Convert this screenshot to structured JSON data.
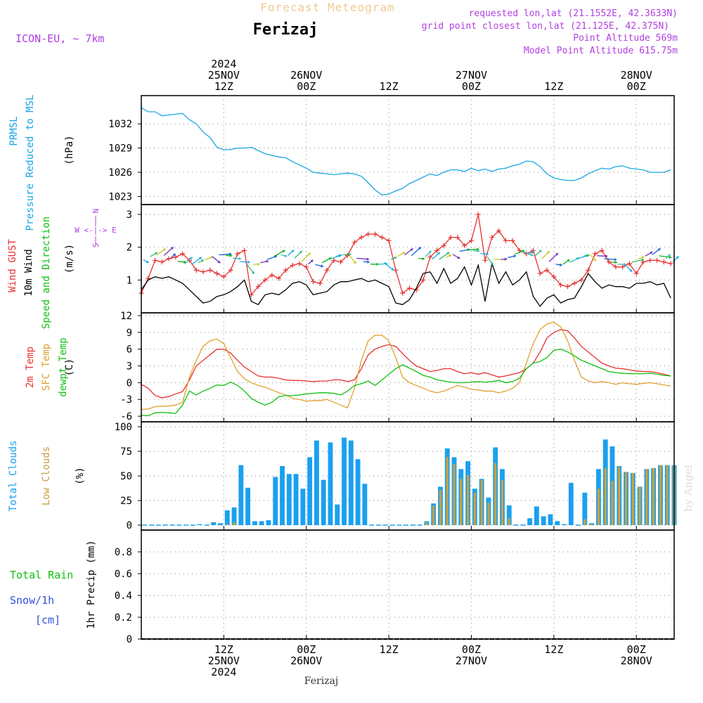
{
  "header": {
    "app_title": "Forecast Meteogram",
    "location": "Ferizaj",
    "model": "ICON-EU, ~ 7km",
    "requested": "requested lon,lat (21.1552E, 42.3633N)",
    "grid_point": "grid point closest lon,lat (21.125E, 42.375N)",
    "point_alt": "Point Altitude 569m",
    "model_alt": "Model Point Altitude 615.75m",
    "watermark": "by Angel",
    "footer": "Ferizaj"
  },
  "colors": {
    "pressure": "#1aa6e6",
    "gust": "#e83030",
    "wind": "#000000",
    "temp": "#e83030",
    "sfc": "#e0a030",
    "dewpt": "#10c010",
    "total_clouds": "#1aa0f0",
    "low_clouds": "#c8a040",
    "purple": "#b040e0",
    "rain": "#10c010",
    "snow": "#3050e0"
  },
  "time_axis": {
    "top_labels": [
      {
        "t": 12,
        "lines": [
          "2024",
          "25NOV",
          "12Z"
        ]
      },
      {
        "t": 24,
        "lines": [
          "26NOV",
          "00Z"
        ]
      },
      {
        "t": 36,
        "lines": [
          "12Z"
        ]
      },
      {
        "t": 48,
        "lines": [
          "27NOV",
          "00Z"
        ]
      },
      {
        "t": 60,
        "lines": [
          "12Z"
        ]
      },
      {
        "t": 72,
        "lines": [
          "28NOV",
          "00Z"
        ]
      }
    ],
    "bottom_labels": [
      {
        "t": 12,
        "lines": [
          "12Z",
          "25NOV",
          "2024"
        ]
      },
      {
        "t": 24,
        "lines": [
          "00Z",
          "26NOV"
        ]
      },
      {
        "t": 36,
        "lines": [
          "12Z"
        ]
      },
      {
        "t": 48,
        "lines": [
          "00Z",
          "27NOV"
        ]
      },
      {
        "t": 60,
        "lines": [
          "12Z"
        ]
      },
      {
        "t": 72,
        "lines": [
          "00Z",
          "28NOV"
        ]
      }
    ]
  },
  "chart_data": [
    {
      "type": "line",
      "name": "pressure",
      "ylabels": [
        "PRMSL",
        "Pressure Reduced to MSL"
      ],
      "unit": "(hPa)",
      "ylim": [
        1022,
        1035.5
      ],
      "yticks": [
        1023,
        1026,
        1029,
        1032
      ],
      "x_start": 0,
      "x_step": 1,
      "series": [
        {
          "values": [
            1034.0,
            1033.5,
            1033.5,
            1033.0,
            1033.1,
            1033.2,
            1033.3,
            1032.5,
            1032.0,
            1031.0,
            1030.3,
            1029.1,
            1028.8,
            1028.8,
            1029.0,
            1029.0,
            1029.1,
            1028.7,
            1028.3,
            1028.1,
            1027.9,
            1027.8,
            1027.3,
            1026.9,
            1026.5,
            1026.0,
            1025.9,
            1025.8,
            1025.7,
            1025.8,
            1025.9,
            1025.8,
            1025.5,
            1024.7,
            1023.8,
            1023.2,
            1023.3,
            1023.7,
            1024.0,
            1024.6,
            1025.0,
            1025.4,
            1025.8,
            1025.6,
            1026.0,
            1026.3,
            1026.3,
            1026.1,
            1026.5,
            1026.2,
            1026.4,
            1026.1,
            1026.4,
            1026.5,
            1026.8,
            1027.0,
            1027.4,
            1027.3,
            1026.7,
            1025.8,
            1025.3,
            1025.1,
            1025.0,
            1025.0,
            1025.3,
            1025.8,
            1026.2,
            1026.5,
            1026.4,
            1026.7,
            1026.8,
            1026.5,
            1026.4,
            1026.3,
            1026.0,
            1026.0,
            1026.0,
            1026.3
          ]
        }
      ]
    },
    {
      "type": "line",
      "name": "wind",
      "ylabels_colored": [
        {
          "text": "Wind GUST",
          "c": "gust"
        },
        {
          "text": "10m Wind",
          "c": "wind"
        },
        {
          "text": "Speed and Direction",
          "c": "dewpt"
        }
      ],
      "unit": "(m/s)",
      "compass": [
        "N",
        "W <-|-> E",
        "S"
      ],
      "ylim": [
        0,
        3.3
      ],
      "yticks": [
        1,
        2,
        3
      ],
      "x_start": 0,
      "x_step": 1,
      "series": [
        {
          "name": "Wind GUST",
          "values": [
            0.6,
            1.05,
            1.6,
            1.55,
            1.65,
            1.7,
            1.8,
            1.6,
            1.3,
            1.25,
            1.3,
            1.2,
            1.1,
            1.3,
            1.8,
            1.9,
            0.55,
            0.8,
            1.0,
            1.15,
            1.05,
            1.3,
            1.45,
            1.5,
            1.4,
            0.95,
            0.9,
            1.3,
            1.6,
            1.55,
            1.75,
            2.15,
            2.3,
            2.4,
            2.4,
            2.3,
            2.2,
            1.3,
            0.6,
            0.75,
            0.7,
            1.0,
            1.7,
            1.9,
            2.05,
            2.3,
            2.3,
            2.05,
            2.2,
            3.0,
            1.6,
            2.3,
            2.5,
            2.2,
            2.2,
            1.9,
            1.8,
            1.9,
            1.2,
            1.3,
            1.1,
            0.85,
            0.8,
            0.9,
            1.0,
            1.3,
            1.8,
            1.9,
            1.55,
            1.4,
            1.4,
            1.5,
            1.2,
            1.55,
            1.6,
            1.6,
            1.55,
            1.5
          ]
        },
        {
          "name": "10m Wind",
          "values": [
            0.7,
            1.0,
            1.1,
            1.05,
            1.1,
            1.0,
            0.9,
            0.7,
            0.5,
            0.3,
            0.35,
            0.5,
            0.55,
            0.65,
            0.8,
            1.0,
            0.35,
            0.25,
            0.55,
            0.6,
            0.55,
            0.7,
            0.9,
            0.95,
            0.85,
            0.55,
            0.6,
            0.65,
            0.85,
            0.95,
            0.95,
            1.0,
            1.05,
            0.95,
            1.0,
            0.9,
            0.8,
            0.3,
            0.25,
            0.4,
            0.75,
            1.2,
            1.25,
            0.9,
            1.35,
            0.9,
            1.05,
            1.4,
            0.85,
            1.45,
            0.35,
            1.5,
            0.9,
            1.25,
            0.85,
            1.0,
            1.25,
            0.5,
            0.2,
            0.45,
            0.55,
            0.3,
            0.4,
            0.45,
            0.8,
            1.2,
            0.95,
            0.75,
            0.85,
            0.8,
            0.8,
            0.75,
            0.9,
            0.9,
            0.95,
            0.85,
            0.9,
            0.45
          ]
        }
      ],
      "arrow_colors": [
        "#19a8e6",
        "#2fb870",
        "#c8c820",
        "#7030c0",
        "#1060e0",
        "#10b010",
        "#30c0c0"
      ]
    },
    {
      "type": "line",
      "name": "temperature",
      "ylabels_colored": [
        {
          "text": "2m Temp",
          "c": "temp"
        },
        {
          "text": "SFC Temp",
          "c": "sfc"
        },
        {
          "text": "dewpt Temp",
          "c": "dewpt"
        }
      ],
      "unit": "(C)",
      "ylim": [
        -7,
        12.5
      ],
      "yticks": [
        -6,
        -3,
        0,
        3,
        6,
        9,
        12
      ],
      "x_start": 0,
      "x_step": 1,
      "series": [
        {
          "name": "2m Temp",
          "values": [
            -0.3,
            -1.0,
            -2.3,
            -2.7,
            -2.5,
            -2.0,
            -1.6,
            0.5,
            3.0,
            4.0,
            5.0,
            6.0,
            6.0,
            5.3,
            4.0,
            2.8,
            2.0,
            1.2,
            1.0,
            1.0,
            0.8,
            0.5,
            0.4,
            0.4,
            0.3,
            0.2,
            0.3,
            0.3,
            0.5,
            0.5,
            0.2,
            0.5,
            2.5,
            5.0,
            6.0,
            6.5,
            6.8,
            6.5,
            5.2,
            4.0,
            3.0,
            2.5,
            2.0,
            2.2,
            2.5,
            2.5,
            2.0,
            1.6,
            1.8,
            1.5,
            1.8,
            1.4,
            1.0,
            1.2,
            1.5,
            1.8,
            2.5,
            3.5,
            5.5,
            8.0,
            9.0,
            9.5,
            9.3,
            8.0,
            6.5,
            5.5,
            4.5,
            3.5,
            3.0,
            2.6,
            2.5,
            2.3,
            2.1,
            2.0,
            2.0,
            1.8,
            1.5,
            1.2
          ]
        },
        {
          "name": "SFC Temp",
          "values": [
            -4.8,
            -4.7,
            -4.3,
            -4.2,
            -4.2,
            -4.0,
            -3.5,
            1.0,
            4.0,
            6.5,
            7.5,
            7.8,
            7.0,
            4.5,
            2.0,
            0.7,
            0.0,
            -0.5,
            -0.8,
            -1.3,
            -1.8,
            -2.2,
            -2.8,
            -3.0,
            -3.3,
            -3.2,
            -3.2,
            -3.0,
            -3.5,
            -4.0,
            -4.5,
            -1.0,
            4.0,
            7.5,
            8.5,
            8.5,
            7.5,
            4.5,
            1.0,
            0.0,
            -0.5,
            -1.0,
            -1.5,
            -1.8,
            -1.5,
            -1.0,
            -0.5,
            -0.8,
            -1.2,
            -1.3,
            -1.5,
            -1.5,
            -1.8,
            -1.5,
            -1.0,
            0.0,
            3.5,
            7.0,
            9.5,
            10.5,
            10.8,
            10.0,
            7.5,
            4.0,
            1.0,
            0.3,
            0.0,
            0.2,
            0.0,
            -0.3,
            0.0,
            -0.2,
            -0.3,
            -0.1,
            0.0,
            -0.2,
            -0.4,
            -0.6
          ]
        },
        {
          "name": "dewpt Temp",
          "values": [
            -5.8,
            -5.9,
            -5.4,
            -5.3,
            -5.4,
            -5.5,
            -4.0,
            -1.5,
            -2.2,
            -1.5,
            -1.0,
            -0.4,
            -0.5,
            0.1,
            -0.5,
            -1.5,
            -2.8,
            -3.5,
            -4.0,
            -3.5,
            -2.5,
            -2.3,
            -2.3,
            -2.2,
            -2.0,
            -1.9,
            -1.8,
            -1.8,
            -1.9,
            -2.2,
            -1.5,
            -0.5,
            -0.2,
            0.3,
            -0.5,
            0.5,
            1.5,
            2.5,
            3.2,
            2.6,
            2.0,
            1.3,
            1.0,
            0.5,
            0.3,
            0.1,
            0.0,
            0.0,
            0.1,
            0.2,
            0.1,
            0.2,
            0.4,
            0.0,
            0.2,
            0.8,
            2.5,
            3.5,
            3.8,
            4.5,
            5.8,
            6.0,
            5.5,
            4.8,
            4.0,
            3.5,
            3.0,
            2.5,
            2.0,
            1.8,
            1.7,
            1.6,
            1.6,
            1.6,
            1.7,
            1.5,
            1.3,
            1.2
          ]
        }
      ]
    },
    {
      "type": "bar",
      "name": "clouds",
      "ylabels_colored": [
        {
          "text": "Total Clouds",
          "c": "total_clouds"
        },
        {
          "text": "Low Clouds",
          "c": "low_clouds"
        }
      ],
      "unit": "(%)",
      "ylim": [
        -5,
        105
      ],
      "yticks": [
        0,
        25,
        50,
        75,
        100
      ],
      "x_start": 0,
      "x_step": 1,
      "series": [
        {
          "name": "Total Clouds",
          "values": [
            0,
            0,
            0,
            0,
            0,
            0,
            0,
            0,
            1,
            0,
            3,
            2,
            15,
            18,
            61,
            38,
            4,
            4,
            5,
            49,
            60,
            52,
            52,
            37,
            69,
            86,
            46,
            84,
            21,
            89,
            86,
            67,
            42,
            0,
            0,
            0,
            0,
            0,
            0,
            0,
            0,
            4,
            22,
            39,
            78,
            69,
            57,
            65,
            37,
            47,
            28,
            79,
            57,
            20,
            0,
            0,
            7,
            19,
            9,
            11,
            4,
            1,
            43,
            0,
            33,
            2,
            57,
            87,
            80,
            60,
            54,
            53,
            39,
            57,
            58,
            61,
            61,
            61
          ]
        },
        {
          "name": "Low Clouds",
          "values": [
            0,
            0,
            0,
            0,
            0,
            0,
            0,
            0,
            0,
            0,
            0,
            0,
            1,
            3,
            0,
            0,
            0,
            0,
            0,
            0,
            0,
            0,
            0,
            0,
            0,
            0,
            0,
            0,
            0,
            0,
            0,
            0,
            0,
            0,
            0,
            0,
            0,
            0,
            0,
            0,
            0,
            3,
            20,
            36,
            69,
            62,
            47,
            51,
            33,
            46,
            23,
            63,
            46,
            7,
            0,
            0,
            0,
            0,
            0,
            0,
            0,
            0,
            0,
            0,
            6,
            1,
            37,
            58,
            45,
            59,
            54,
            53,
            39,
            57,
            58,
            61,
            61,
            61
          ]
        }
      ]
    },
    {
      "type": "bar",
      "name": "precip",
      "ylabels_colored": [
        {
          "text": "Total  Rain",
          "c": "rain"
        },
        {
          "text": "Snow/1h",
          "c": "snow"
        },
        {
          "text": "[cm]",
          "c": "snow"
        }
      ],
      "unit": "1hr Precip (mm)",
      "ylim": [
        0,
        1.0
      ],
      "yticks": [
        0,
        0.2,
        0.4,
        0.6,
        0.8
      ],
      "series": [
        {
          "name": "Total Rain",
          "values": [
            0,
            0,
            0,
            0,
            0,
            0,
            0,
            0,
            0,
            0,
            0,
            0,
            0,
            0,
            0,
            0,
            0,
            0,
            0,
            0,
            0,
            0,
            0,
            0,
            0,
            0,
            0,
            0,
            0,
            0,
            0,
            0,
            0,
            0,
            0,
            0,
            0,
            0,
            0,
            0,
            0,
            0,
            0,
            0,
            0,
            0,
            0,
            0,
            0,
            0,
            0,
            0,
            0,
            0,
            0,
            0,
            0,
            0,
            0,
            0,
            0,
            0,
            0,
            0,
            0,
            0,
            0,
            0,
            0,
            0,
            0,
            0,
            0,
            0,
            0,
            0,
            0,
            0
          ]
        }
      ]
    }
  ]
}
